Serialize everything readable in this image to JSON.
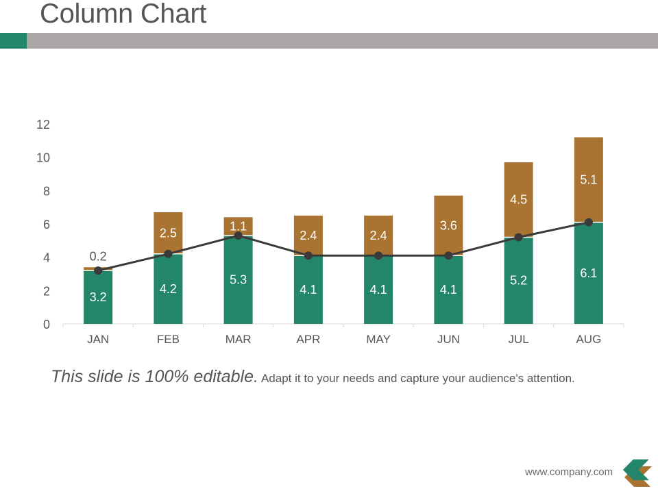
{
  "header": {
    "title": "Column Chart",
    "accent_color": "#23866a",
    "bar_color": "#aba7a6"
  },
  "caption": {
    "lead": "This slide is 100% editable.",
    "rest": "Adapt it to your needs and capture your audience's attention."
  },
  "footer": {
    "url": "www.company.com",
    "icon": "chevron-left-icon"
  },
  "colors": {
    "series1": "#23866a",
    "series2": "#a97431",
    "line": "#3a3a3a",
    "axis_text": "#555555",
    "axis_line": "#d9d9d9"
  },
  "chart_data": {
    "type": "bar",
    "stacked": true,
    "title": "",
    "xlabel": "",
    "ylabel": "",
    "categories": [
      "JAN",
      "FEB",
      "MAR",
      "APR",
      "MAY",
      "JUN",
      "JUL",
      "AUG"
    ],
    "series": [
      {
        "name": "Series 1",
        "type": "bar",
        "values": [
          3.2,
          4.2,
          5.3,
          4.1,
          4.1,
          4.1,
          5.2,
          6.1
        ]
      },
      {
        "name": "Series 2",
        "type": "bar",
        "values": [
          0.2,
          2.5,
          1.1,
          2.4,
          2.4,
          3.6,
          4.5,
          5.1
        ]
      },
      {
        "name": "Series 3",
        "type": "line",
        "values": [
          3.2,
          4.2,
          5.3,
          4.1,
          4.1,
          4.1,
          5.2,
          6.1
        ]
      }
    ],
    "ylim": [
      0,
      12
    ],
    "yticks": [
      0,
      2,
      4,
      6,
      8,
      10,
      12
    ],
    "grid": false,
    "legend": "none",
    "data_labels": true
  }
}
